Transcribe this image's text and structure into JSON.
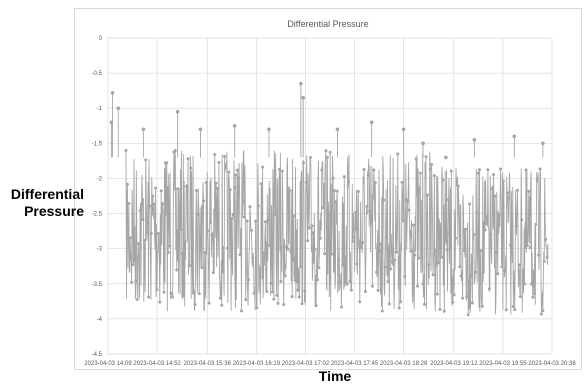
{
  "chart_data": {
    "type": "line",
    "title": "Differential Pressure",
    "xlabel": "Time",
    "ylabel": "Differential Pressure",
    "ylim": [
      -4.5,
      0
    ],
    "yticks": [
      "0",
      "-0.5",
      "-1",
      "-1.5",
      "-2",
      "-2.5",
      "-3",
      "-3.5",
      "-4",
      "-4.5"
    ],
    "xticks": [
      "2023-04-03 14:09",
      "2023-04-03 14:52",
      "2023-04-03 15:36",
      "2023-04-03 16:19",
      "2023-04-03 17:02",
      "2023-04-03 17:45",
      "2023-04-03 18:28",
      "2023-04-03 19:12",
      "2023-04-03 19:55",
      "2023-04-03 20:38"
    ],
    "x_range": [
      "2023-04-03 14:09",
      "2023-04-03 20:38"
    ],
    "grid": true,
    "legend": "none",
    "series": [
      {
        "color": "#a5a5a5",
        "marker": "circle",
        "x": [
          "2023-04-03 14:12",
          "2023-04-03 14:13",
          "2023-04-03 14:18",
          "2023-04-03 14:40",
          "2023-04-03 15:10",
          "2023-04-03 15:30",
          "2023-04-03 16:00",
          "2023-04-03 16:30",
          "2023-04-03 16:58",
          "2023-04-03 17:00",
          "2023-04-03 17:30",
          "2023-04-03 18:00",
          "2023-04-03 18:28",
          "2023-04-03 18:45",
          "2023-04-03 19:05",
          "2023-04-03 19:30",
          "2023-04-03 20:05",
          "2023-04-03 20:30"
        ],
        "y": [
          -1.2,
          -0.78,
          -1.0,
          -1.3,
          -1.05,
          -1.3,
          -1.25,
          -1.3,
          -0.65,
          -0.85,
          -1.3,
          -1.2,
          -1.3,
          -1.5,
          -1.7,
          -1.45,
          -1.4,
          -1.5
        ],
        "band_high": -1.6,
        "band_low": -3.9,
        "min": -4.1
      }
    ]
  }
}
